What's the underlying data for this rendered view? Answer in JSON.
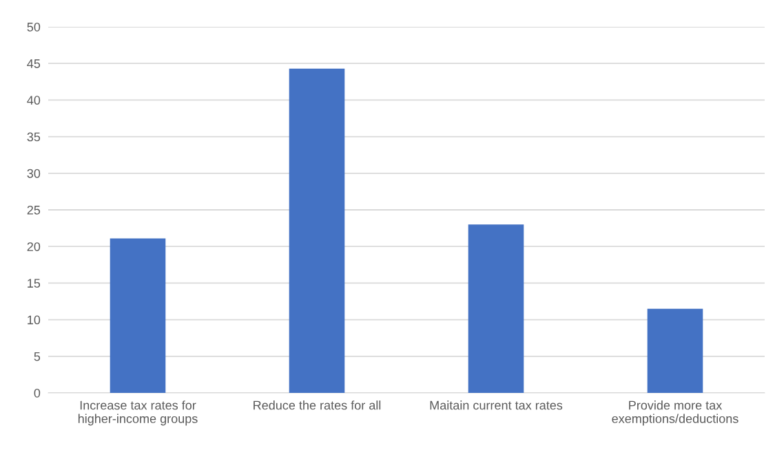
{
  "chart_data": {
    "type": "bar",
    "categories": [
      "Increase tax rates for\nhigher-income groups",
      "Reduce the rates for all",
      "Maitain current tax rates",
      "Provide more tax\nexemptions/deductions"
    ],
    "values": [
      21.1,
      44.3,
      23.0,
      11.5
    ],
    "color": "#4472c4",
    "ylim": [
      0,
      50
    ],
    "yticks": [
      0,
      5,
      10,
      15,
      20,
      25,
      30,
      35,
      40,
      45,
      50
    ],
    "grid": "y"
  }
}
